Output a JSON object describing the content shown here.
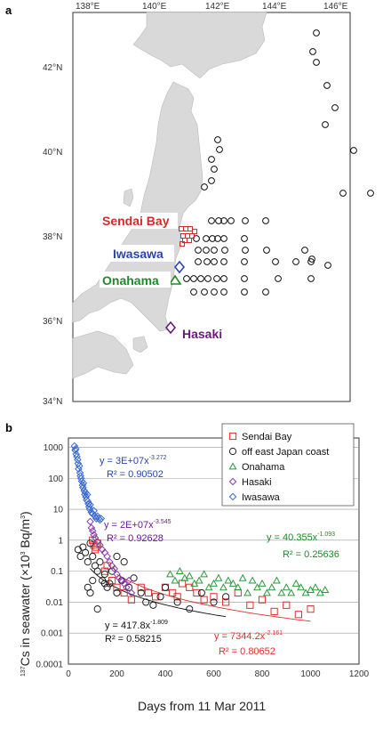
{
  "panel_a": {
    "letter": "a",
    "lon_ticks": [
      "138°E",
      "140°E",
      "142°E",
      "144°E",
      "146°E"
    ],
    "lat_ticks": [
      "42°N",
      "40°N",
      "38°N",
      "36°N",
      "34°N"
    ],
    "sites": [
      {
        "label": "Sendai Bay",
        "color": "#d42a2a"
      },
      {
        "label": "Iwasawa",
        "color": "#2a45b0"
      },
      {
        "label": "Onahama",
        "color": "#1e8a2a"
      },
      {
        "label": "Hasaki",
        "color": "#6a1b7a"
      }
    ]
  },
  "panel_b": {
    "letter": "b",
    "chart_data": {
      "type": "scatter",
      "xlabel": "Days from 11 Mar 2011",
      "ylabel_parts": [
        "137",
        "Cs in seawater (×10",
        "3",
        " Bq/m",
        "3",
        ")"
      ],
      "x_ticks": [
        "0",
        "200",
        "400",
        "600",
        "800",
        "1000",
        "1200"
      ],
      "y_ticks": [
        "1000",
        "100",
        "10",
        "1",
        "0.1",
        "0.01",
        "0.001",
        "0.0001"
      ],
      "xlim": [
        0,
        1200
      ],
      "ylim": [
        0.0001,
        2000
      ],
      "y_scale": "log",
      "legend_position": "top-right",
      "series": [
        {
          "name": "Sendai Bay",
          "marker": "square",
          "color": "#e03030",
          "points": [
            [
              100,
              1.0
            ],
            [
              105,
              0.7
            ],
            [
              110,
              0.5
            ],
            [
              115,
              0.6
            ],
            [
              120,
              0.8
            ],
            [
              150,
              0.1
            ],
            [
              160,
              0.15
            ],
            [
              180,
              0.05
            ],
            [
              200,
              0.03
            ],
            [
              230,
              0.02
            ],
            [
              260,
              0.012
            ],
            [
              300,
              0.03
            ],
            [
              330,
              0.02
            ],
            [
              360,
              0.015
            ],
            [
              400,
              0.03
            ],
            [
              430,
              0.02
            ],
            [
              450,
              0.015
            ],
            [
              470,
              0.04
            ],
            [
              500,
              0.03
            ],
            [
              530,
              0.02
            ],
            [
              560,
              0.012
            ],
            [
              600,
              0.015
            ],
            [
              650,
              0.01
            ],
            [
              700,
              0.02
            ],
            [
              750,
              0.008
            ],
            [
              800,
              0.012
            ],
            [
              850,
              0.005
            ],
            [
              900,
              0.008
            ],
            [
              950,
              0.004
            ],
            [
              1000,
              0.006
            ]
          ]
        },
        {
          "name": "off east Japan coast",
          "marker": "circle",
          "color": "#222222",
          "points": [
            [
              40,
              0.5
            ],
            [
              50,
              0.3
            ],
            [
              60,
              0.6
            ],
            [
              70,
              0.4
            ],
            [
              80,
              0.2
            ],
            [
              90,
              0.8
            ],
            [
              100,
              0.3
            ],
            [
              110,
              0.15
            ],
            [
              120,
              0.1
            ],
            [
              130,
              0.2
            ],
            [
              140,
              0.05
            ],
            [
              150,
              0.08
            ],
            [
              160,
              0.03
            ],
            [
              170,
              0.04
            ],
            [
              180,
              0.1
            ],
            [
              200,
              0.02
            ],
            [
              220,
              0.05
            ],
            [
              250,
              0.03
            ],
            [
              270,
              0.06
            ],
            [
              300,
              0.02
            ],
            [
              320,
              0.01
            ],
            [
              350,
              0.008
            ],
            [
              380,
              0.015
            ],
            [
              400,
              0.03
            ],
            [
              450,
              0.01
            ],
            [
              500,
              0.006
            ],
            [
              550,
              0.02
            ],
            [
              600,
              0.01
            ],
            [
              650,
              0.015
            ],
            [
              80,
              0.03
            ],
            [
              90,
              0.02
            ],
            [
              100,
              0.05
            ],
            [
              120,
              0.006
            ],
            [
              150,
              0.04
            ],
            [
              200,
              0.3
            ],
            [
              230,
              0.2
            ]
          ]
        },
        {
          "name": "Onahama",
          "marker": "triangle",
          "color": "#2a9a3a",
          "points": [
            [
              420,
              0.08
            ],
            [
              440,
              0.05
            ],
            [
              460,
              0.1
            ],
            [
              480,
              0.06
            ],
            [
              500,
              0.07
            ],
            [
              520,
              0.04
            ],
            [
              540,
              0.05
            ],
            [
              560,
              0.08
            ],
            [
              580,
              0.03
            ],
            [
              600,
              0.04
            ],
            [
              620,
              0.06
            ],
            [
              640,
              0.03
            ],
            [
              660,
              0.05
            ],
            [
              680,
              0.04
            ],
            [
              700,
              0.03
            ],
            [
              720,
              0.06
            ],
            [
              740,
              0.02
            ],
            [
              760,
              0.05
            ],
            [
              780,
              0.03
            ],
            [
              800,
              0.04
            ],
            [
              820,
              0.02
            ],
            [
              840,
              0.03
            ],
            [
              860,
              0.05
            ],
            [
              880,
              0.02
            ],
            [
              900,
              0.03
            ],
            [
              920,
              0.02
            ],
            [
              940,
              0.04
            ],
            [
              960,
              0.03
            ],
            [
              980,
              0.02
            ],
            [
              1000,
              0.025
            ],
            [
              1020,
              0.03
            ],
            [
              1040,
              0.02
            ],
            [
              1060,
              0.025
            ]
          ]
        },
        {
          "name": "Hasaki",
          "marker": "diamond",
          "color": "#8a3ab0",
          "points": [
            [
              90,
              4
            ],
            [
              95,
              2.5
            ],
            [
              100,
              2
            ],
            [
              105,
              1.5
            ],
            [
              110,
              1.2
            ],
            [
              120,
              0.9
            ],
            [
              130,
              0.7
            ],
            [
              140,
              0.5
            ],
            [
              150,
              0.4
            ],
            [
              160,
              0.3
            ],
            [
              170,
              0.2
            ],
            [
              180,
              0.15
            ],
            [
              190,
              0.12
            ],
            [
              200,
              0.08
            ],
            [
              210,
              0.06
            ],
            [
              220,
              0.05
            ],
            [
              230,
              0.04
            ],
            [
              240,
              0.03
            ],
            [
              250,
              0.05
            ],
            [
              260,
              0.02
            ]
          ]
        },
        {
          "name": "Iwasawa",
          "marker": "diamond",
          "color": "#3a6ad0",
          "points": [
            [
              25,
              1100
            ],
            [
              28,
              800
            ],
            [
              30,
              900
            ],
            [
              32,
              600
            ],
            [
              35,
              500
            ],
            [
              38,
              400
            ],
            [
              40,
              300
            ],
            [
              42,
              200
            ],
            [
              45,
              250
            ],
            [
              48,
              150
            ],
            [
              50,
              120
            ],
            [
              52,
              100
            ],
            [
              55,
              80
            ],
            [
              58,
              60
            ],
            [
              60,
              50
            ],
            [
              62,
              70
            ],
            [
              65,
              40
            ],
            [
              68,
              30
            ],
            [
              70,
              35
            ],
            [
              72,
              25
            ],
            [
              75,
              20
            ],
            [
              78,
              30
            ],
            [
              80,
              18
            ],
            [
              82,
              15
            ],
            [
              85,
              12
            ],
            [
              88,
              10
            ],
            [
              90,
              14
            ],
            [
              95,
              8
            ],
            [
              100,
              7
            ],
            [
              105,
              9
            ],
            [
              110,
              6
            ],
            [
              115,
              5
            ],
            [
              120,
              6
            ],
            [
              125,
              5
            ],
            [
              130,
              4.5
            ],
            [
              135,
              5
            ]
          ]
        }
      ],
      "fits": [
        {
          "label": "y = 3E+07x",
          "exp": "-3.272",
          "r2": "R² = 0.90502",
          "color": "#2a45b0",
          "a": 30000000.0,
          "b": -3.272,
          "x0": 0,
          "x1": 0
        },
        {
          "label": "y = 2E+07x",
          "exp": "-3.545",
          "r2": "R² = 0.92628",
          "color": "#6a1b9a",
          "a": 20000000.0,
          "b": -3.545,
          "x0": 0,
          "x1": 0
        },
        {
          "label": "y = 40.355x",
          "exp": "-1.093",
          "r2": "R² = 0.25636",
          "color": "#1e8a2a",
          "a": 40.355,
          "b": -1.093,
          "x0": 0,
          "x1": 0
        },
        {
          "label": "y = 417.8x",
          "exp": "-1.809",
          "r2": "R² = 0.58215",
          "color": "#111111",
          "a": 417.8,
          "b": -1.809,
          "x0": 90,
          "x1": 650
        },
        {
          "label": "y = 7344.2x",
          "exp": "-2.161",
          "r2": "R² = 0.80652",
          "color": "#e03030",
          "a": 7344.2,
          "b": -2.161,
          "x0": 200,
          "x1": 1000
        }
      ]
    }
  }
}
